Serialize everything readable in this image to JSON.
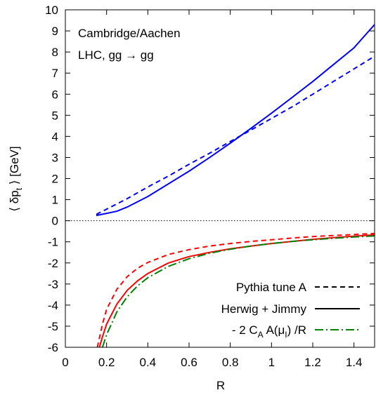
{
  "chart_data": {
    "type": "line",
    "title": "",
    "annotations": [
      "Cambridge/Aachen",
      "LHC, gg → gg"
    ],
    "xlabel": "R",
    "ylabel": "⟨ δp",
    "ylabel_sub": "t",
    "ylabel_rest": " ⟩ [GeV]",
    "xlim": [
      0,
      1.5
    ],
    "ylim": [
      -6,
      10
    ],
    "x_ticks": [
      0,
      0.2,
      0.4,
      0.6,
      0.8,
      1,
      1.2,
      1.4
    ],
    "x_tick_labels": [
      "0",
      "0.2",
      "0.4",
      "0.6",
      "0.8",
      "1",
      "1.2",
      "1.4"
    ],
    "y_ticks": [
      -6,
      -5,
      -4,
      -3,
      -2,
      -1,
      0,
      1,
      2,
      3,
      4,
      5,
      6,
      7,
      8,
      9,
      10
    ],
    "y_tick_labels": [
      "-6",
      "-5",
      "-4",
      "-3",
      "-2",
      "-1",
      "0",
      "1",
      "2",
      "3",
      "4",
      "5",
      "6",
      "7",
      "8",
      "9",
      "10"
    ],
    "grid": false,
    "zero_line": true,
    "legend_position": "bottom-right",
    "legend": [
      {
        "label": "Pythia tune A",
        "style": "dashed",
        "color": "#000000"
      },
      {
        "label": "Herwig + Jimmy",
        "style": "solid",
        "color": "#000000"
      },
      {
        "label_main": "- 2 C",
        "label_sub1": "A",
        "label_mid": " A(μ",
        "label_sub2": "I",
        "label_end": ") /R",
        "style": "dashdot",
        "color": "#008000"
      }
    ],
    "series": [
      {
        "name": "Pythia tune A",
        "color": "#0000ff",
        "style": "dashed",
        "x": [
          0.15,
          0.2,
          0.3,
          0.4,
          0.5,
          0.6,
          0.7,
          0.8,
          0.9,
          1.0,
          1.1,
          1.2,
          1.3,
          1.4,
          1.5
        ],
        "y": [
          0.3,
          0.55,
          1.05,
          1.6,
          2.12,
          2.68,
          3.2,
          3.76,
          4.3,
          4.85,
          5.4,
          6.0,
          6.6,
          7.2,
          7.8
        ]
      },
      {
        "name": "Herwig + Jimmy",
        "color": "#0000ff",
        "style": "solid",
        "x": [
          0.15,
          0.2,
          0.25,
          0.3,
          0.4,
          0.5,
          0.6,
          0.7,
          0.8,
          0.9,
          1.0,
          1.1,
          1.2,
          1.3,
          1.4,
          1.5
        ],
        "y": [
          0.25,
          0.35,
          0.45,
          0.65,
          1.15,
          1.75,
          2.35,
          3.0,
          3.68,
          4.38,
          5.1,
          5.85,
          6.6,
          7.4,
          8.2,
          9.3
        ]
      },
      {
        "name": "Pythia tune A",
        "color": "#ff0000",
        "style": "dashed",
        "x": [
          0.155,
          0.18,
          0.2,
          0.25,
          0.3,
          0.35,
          0.4,
          0.5,
          0.6,
          0.7,
          0.8,
          0.9,
          1.0,
          1.1,
          1.2,
          1.3,
          1.4,
          1.5
        ],
        "y": [
          -6.0,
          -4.9,
          -4.2,
          -3.25,
          -2.65,
          -2.25,
          -1.98,
          -1.6,
          -1.37,
          -1.2,
          -1.08,
          -0.98,
          -0.9,
          -0.82,
          -0.75,
          -0.7,
          -0.65,
          -0.6
        ]
      },
      {
        "name": "Herwig + Jimmy",
        "color": "#ff0000",
        "style": "solid",
        "x": [
          0.165,
          0.18,
          0.2,
          0.25,
          0.3,
          0.35,
          0.4,
          0.5,
          0.6,
          0.7,
          0.8,
          0.9,
          1.0,
          1.1,
          1.2,
          1.3,
          1.4,
          1.5
        ],
        "y": [
          -6.0,
          -5.5,
          -4.9,
          -3.95,
          -3.3,
          -2.85,
          -2.5,
          -2.0,
          -1.7,
          -1.5,
          -1.33,
          -1.2,
          -1.08,
          -0.98,
          -0.88,
          -0.8,
          -0.73,
          -0.67
        ]
      },
      {
        "name": "- 2 CA A(μI) /R",
        "color": "#008000",
        "style": "dashdot",
        "x": [
          0.18,
          0.2,
          0.25,
          0.3,
          0.35,
          0.4,
          0.5,
          0.6,
          0.7,
          0.8,
          0.9,
          1.0,
          1.1,
          1.2,
          1.3,
          1.4,
          1.5
        ],
        "y": [
          -6.0,
          -5.4,
          -4.32,
          -3.6,
          -3.09,
          -2.7,
          -2.16,
          -1.8,
          -1.54,
          -1.35,
          -1.2,
          -1.08,
          -0.98,
          -0.9,
          -0.83,
          -0.77,
          -0.72
        ]
      }
    ]
  }
}
